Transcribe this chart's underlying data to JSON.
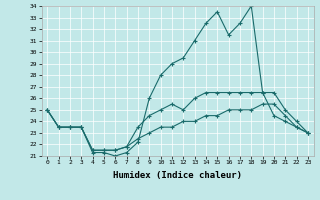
{
  "xlabel": "Humidex (Indice chaleur)",
  "ylabel": "",
  "xlim": [
    -0.5,
    23.5
  ],
  "ylim": [
    21,
    34
  ],
  "yticks": [
    21,
    22,
    23,
    24,
    25,
    26,
    27,
    28,
    29,
    30,
    31,
    32,
    33,
    34
  ],
  "xticks": [
    0,
    1,
    2,
    3,
    4,
    5,
    6,
    7,
    8,
    9,
    10,
    11,
    12,
    13,
    14,
    15,
    16,
    17,
    18,
    19,
    20,
    21,
    22,
    23
  ],
  "bg_color": "#c2e8e8",
  "line_color": "#1a6b6b",
  "series": [
    [
      25.0,
      23.5,
      23.5,
      23.5,
      21.3,
      21.3,
      21.0,
      21.3,
      22.2,
      26.0,
      28.0,
      29.0,
      29.5,
      31.0,
      32.5,
      33.5,
      31.5,
      32.5,
      34.0,
      26.5,
      24.5,
      24.0,
      23.5,
      23.0
    ],
    [
      25.0,
      23.5,
      23.5,
      23.5,
      21.5,
      21.5,
      21.5,
      21.8,
      23.5,
      24.5,
      25.0,
      25.5,
      25.0,
      26.0,
      26.5,
      26.5,
      26.5,
      26.5,
      26.5,
      26.5,
      26.5,
      25.0,
      24.0,
      23.0
    ],
    [
      25.0,
      23.5,
      23.5,
      23.5,
      21.5,
      21.5,
      21.5,
      21.8,
      22.5,
      23.0,
      23.5,
      23.5,
      24.0,
      24.0,
      24.5,
      24.5,
      25.0,
      25.0,
      25.0,
      25.5,
      25.5,
      24.5,
      23.5,
      23.0
    ]
  ]
}
